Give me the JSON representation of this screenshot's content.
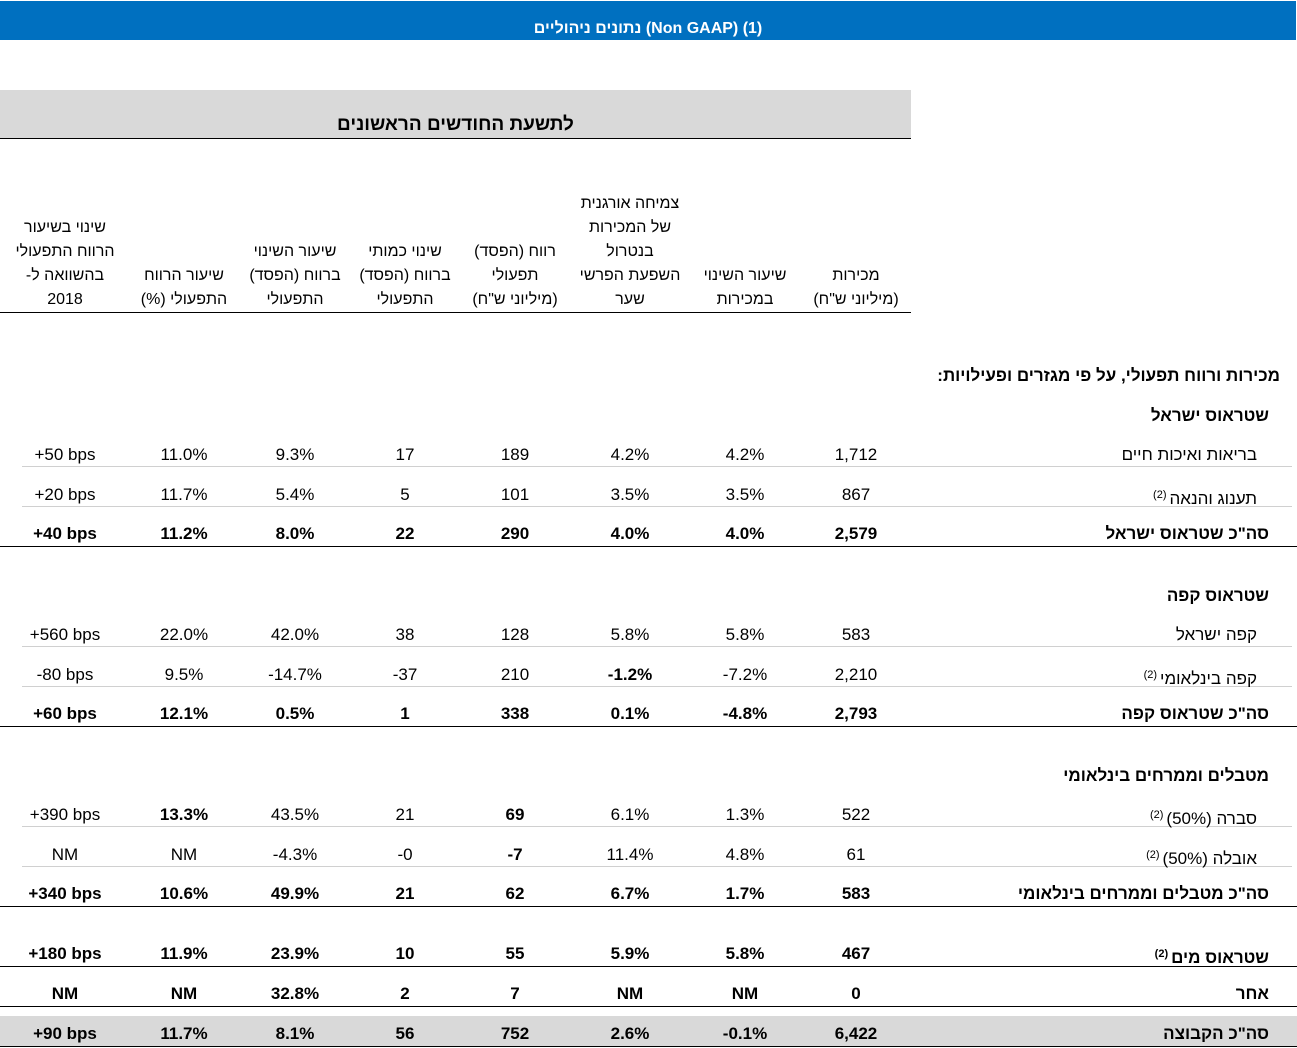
{
  "title": "נתונים ניהוליים (Non GAAP) (1)",
  "period": "לתשעת החודשים הראשונים",
  "headers": {
    "sales": [
      "מכירות",
      "(מיליוני ש\"ח)"
    ],
    "sales_change": [
      "שיעור השינוי",
      "במכירות"
    ],
    "organic": [
      "צמיחה אורגנית",
      "של המכירות",
      "בנטרול",
      "השפעת הפרשי",
      "שער"
    ],
    "op_profit": [
      "רווח (הפסד)",
      "תפעולי",
      "(מיליוני ש\"ח)"
    ],
    "profit_change_qty": [
      "שינוי כמותי",
      "ברווח (הפסד)",
      "התפעולי"
    ],
    "profit_change_rate": [
      "שיעור השינוי",
      "ברווח (הפסד)",
      "התפעולי"
    ],
    "margin": [
      "שיעור הרווח",
      "התפעולי (%)"
    ],
    "margin_change": [
      "שינוי בשיעור",
      "הרווח התפעולי",
      "בהשוואה ל-",
      "2018"
    ]
  },
  "section_heading": "מכירות ורווח תפעולי, על פי מגזרים ופעילויות:",
  "segments": {
    "israel": "שטראוס ישראל",
    "coffee": "שטראוס קפה",
    "intl": "מטבלים וממרחים בינלאומי"
  },
  "rows": {
    "health": {
      "label": "בריאות ואיכות חיים",
      "note": "",
      "values": [
        "1,712",
        "4.2%",
        "4.2%",
        "189",
        "17",
        "9.3%",
        "11.0%",
        "+50 bps"
      ]
    },
    "fun": {
      "label": "תענוג והנאה",
      "note": "(2)",
      "values": [
        "867",
        "3.5%",
        "3.5%",
        "101",
        "5",
        "5.4%",
        "11.7%",
        "+20 bps"
      ]
    },
    "israel_total": {
      "label": "סה\"כ שטראוס ישראל",
      "note": "",
      "values": [
        "2,579",
        "4.0%",
        "4.0%",
        "290",
        "22",
        "8.0%",
        "11.2%",
        "+40 bps"
      ]
    },
    "coffee_il": {
      "label": "קפה ישראל",
      "note": "",
      "values": [
        "583",
        "5.8%",
        "5.8%",
        "128",
        "38",
        "42.0%",
        "22.0%",
        "+560 bps"
      ]
    },
    "coffee_intl": {
      "label": "קפה בינלאומי",
      "note": "(2)",
      "values": [
        "2,210",
        "-7.2%",
        "-1.2%",
        "210",
        "-37",
        "-14.7%",
        "9.5%",
        "-80 bps"
      ]
    },
    "coffee_total": {
      "label": "סה\"כ שטראוס קפה",
      "note": "",
      "values": [
        "2,793",
        "-4.8%",
        "0.1%",
        "338",
        "1",
        "0.5%",
        "12.1%",
        "+60 bps"
      ]
    },
    "sabra": {
      "label": "סברה (50%)",
      "note": "(2)",
      "values": [
        "522",
        "1.3%",
        "6.1%",
        "69",
        "21",
        "43.5%",
        "13.3%",
        "+390 bps"
      ]
    },
    "obela": {
      "label": "אובלה (50%)",
      "note": "(2)",
      "values": [
        "61",
        "4.8%",
        "11.4%",
        "-7",
        "-0",
        "-4.3%",
        "NM",
        "NM"
      ]
    },
    "intl_total": {
      "label": "סה\"כ מטבלים וממרחים בינלאומי",
      "note": "",
      "values": [
        "583",
        "1.7%",
        "6.7%",
        "62",
        "21",
        "49.9%",
        "10.6%",
        "+340 bps"
      ]
    },
    "water": {
      "label": "שטראוס מים",
      "note": "(2)",
      "values": [
        "467",
        "5.8%",
        "5.9%",
        "55",
        "10",
        "23.9%",
        "11.9%",
        "+180 bps"
      ]
    },
    "other": {
      "label": "אחר",
      "note": "",
      "values": [
        "0",
        "NM",
        "NM",
        "7",
        "2",
        "32.8%",
        "NM",
        "NM"
      ]
    },
    "group_total": {
      "label": "סה\"כ הקבוצה",
      "note": "",
      "values": [
        "6,422",
        "-0.1%",
        "2.6%",
        "752",
        "56",
        "8.1%",
        "11.7%",
        "+90 bps"
      ]
    }
  }
}
